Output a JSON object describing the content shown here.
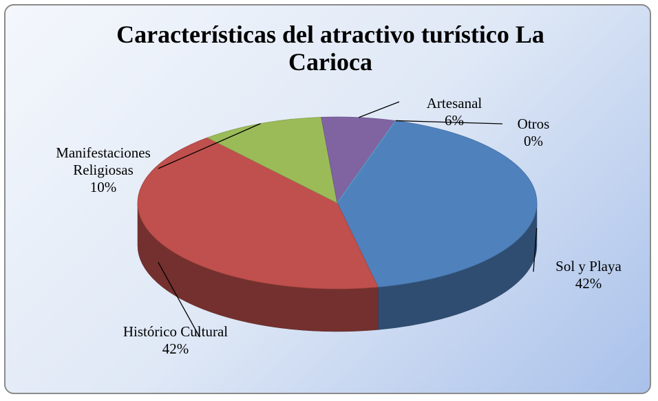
{
  "chart_data": {
    "type": "pie3d",
    "title": "Características del atractivo turístico La Carioca",
    "categories": [
      "Sol y Playa",
      "Histórico Cultural",
      "Manifestaciones Religiosas",
      "Artesanal",
      "Otros"
    ],
    "values": [
      42,
      42,
      10,
      6,
      0
    ],
    "value_labels": [
      "42%",
      "42%",
      "10%",
      "6%",
      "0%"
    ],
    "colors": [
      "#4f81bd",
      "#c0504d",
      "#9bbb59",
      "#8064a2",
      "#4bacc6"
    ]
  }
}
